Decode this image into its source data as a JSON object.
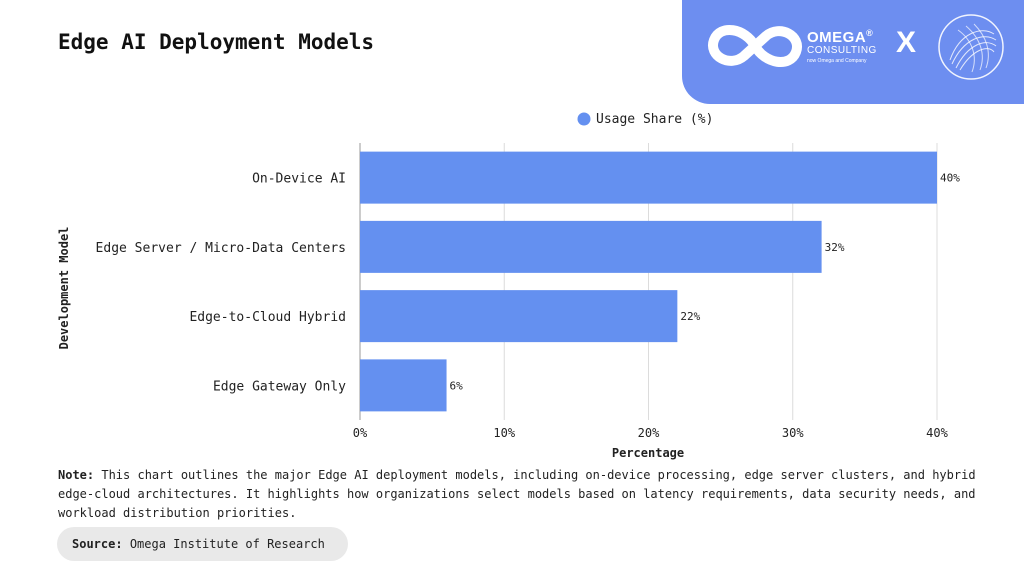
{
  "title": "Edge AI Deployment Models",
  "brand": {
    "name": "OMEGA",
    "registered": "®",
    "sub": "CONSULTING",
    "tagline": "now Omega and Company",
    "separator": "X",
    "logo_icon": "infinity-icon",
    "partner_icon": "wireframe-globe-icon",
    "panel_color": "#6d8ef0"
  },
  "chart_data": {
    "type": "bar",
    "orientation": "horizontal",
    "categories": [
      "On-Device AI",
      "Edge Server / Micro-Data Centers",
      "Edge-to-Cloud Hybrid",
      "Edge Gateway Only"
    ],
    "series": [
      {
        "name": "Usage Share (%)",
        "values": [
          40,
          32,
          22,
          6
        ],
        "color": "#6490f0"
      }
    ],
    "data_labels": [
      "40%",
      "32%",
      "22%",
      "6%"
    ],
    "xlabel": "Percentage",
    "ylabel": "Development Model",
    "xlim": [
      0,
      40
    ],
    "x_ticks": [
      0,
      10,
      20,
      30,
      40
    ],
    "x_tick_labels": [
      "0%",
      "10%",
      "20%",
      "30%",
      "40%"
    ],
    "grid": "vertical",
    "legend_position": "top"
  },
  "note": {
    "label": "Note:",
    "text": "This chart outlines the major Edge AI deployment models, including on-device processing, edge server clusters, and hybrid edge-cloud architectures. It highlights how organizations select models based on latency requirements, data security needs, and workload distribution priorities."
  },
  "source": {
    "label": "Source:",
    "text": "Omega Institute of Research"
  }
}
